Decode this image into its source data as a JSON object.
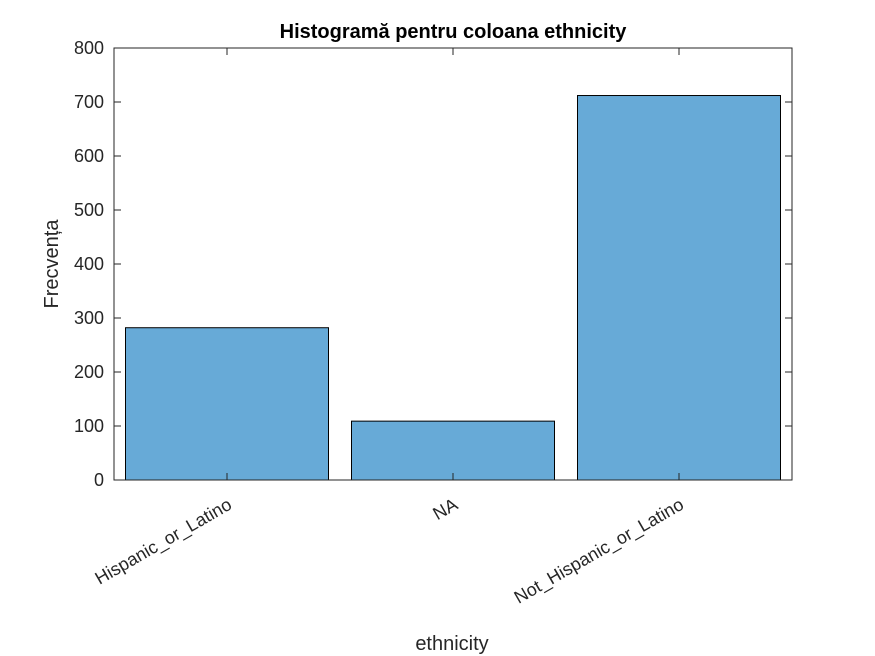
{
  "chart_data": {
    "type": "bar",
    "title": "Histogramă pentru coloana ethnicity",
    "xlabel": "ethnicity",
    "ylabel": "Frecvența",
    "categories": [
      "Hispanic_or_Latino",
      "NA",
      "Not_Hispanic_or_Latino"
    ],
    "values": [
      282,
      109,
      712
    ],
    "ylim": [
      0,
      800
    ],
    "yticks": [
      0,
      100,
      200,
      300,
      400,
      500,
      600,
      700,
      800
    ],
    "ytick_labels": [
      "0",
      "100",
      "200",
      "300",
      "400",
      "500",
      "600",
      "700",
      "800"
    ],
    "grid": false,
    "legend": "none",
    "bar_color": "#67AAD7",
    "bar_edge_color": "#000000"
  }
}
